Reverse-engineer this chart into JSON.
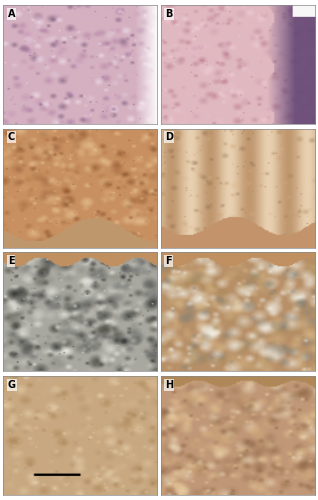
{
  "figure_size": [
    3.18,
    5.0
  ],
  "dpi": 100,
  "n_rows": 4,
  "n_cols": 2,
  "labels": [
    "A",
    "B",
    "C",
    "D",
    "E",
    "F",
    "G",
    "H"
  ],
  "panel_border_color": "#888888",
  "background_color": "#ffffff",
  "label_fontsize": 7,
  "label_color": "#000000",
  "panel_A": {
    "base": "#d4b0c0",
    "colors": [
      "#a878a0",
      "#c898b8",
      "#e0c8d8",
      "#b888a8",
      "#d4b0c8",
      "#f0e0ec",
      "#806080"
    ]
  },
  "panel_B": {
    "base": "#e0b8c0",
    "colors": [
      "#d0a0b0",
      "#f0d0d8",
      "#c08898",
      "#e8c0cc",
      "#b87888"
    ],
    "purple": "#5c4070"
  },
  "panel_C": {
    "base": "#c89060",
    "colors": [
      "#a06840",
      "#d4a070",
      "#e0b888",
      "#b87848",
      "#f0d0a0",
      "#804820"
    ],
    "epi": "#d4a878"
  },
  "panel_D": {
    "base": "#d0a878",
    "stripe1": "#c09870",
    "stripe2": "#e8d0b0",
    "colors": [
      "#a07848",
      "#c89870",
      "#d8b088",
      "#806040"
    ],
    "epi": "#c89060"
  },
  "panel_E": {
    "base": "#a8a8a0",
    "colors": [
      "#282828",
      "#686868",
      "#c8c8c0",
      "#f0f0e8",
      "#484840",
      "#909088"
    ],
    "epi": "#c09060"
  },
  "panel_F": {
    "base": "#b89068",
    "colors": [
      "#f0f0e8",
      "#808078",
      "#c8a878",
      "#a88858",
      "#d8b888",
      "#f8f8f0"
    ],
    "epi": "#c09060"
  },
  "panel_G": {
    "base": "#c8a880",
    "colors": [
      "#b09068",
      "#d8b890",
      "#e8d0a8",
      "#a07848",
      "#f0e0c0",
      "#c8b090"
    ],
    "scalebar": true
  },
  "panel_H": {
    "base": "#c09878",
    "colors": [
      "#a07858",
      "#d0a878",
      "#e8c898",
      "#f0e0c0",
      "#886040",
      "#d8b080"
    ],
    "epi": "#b08858"
  }
}
